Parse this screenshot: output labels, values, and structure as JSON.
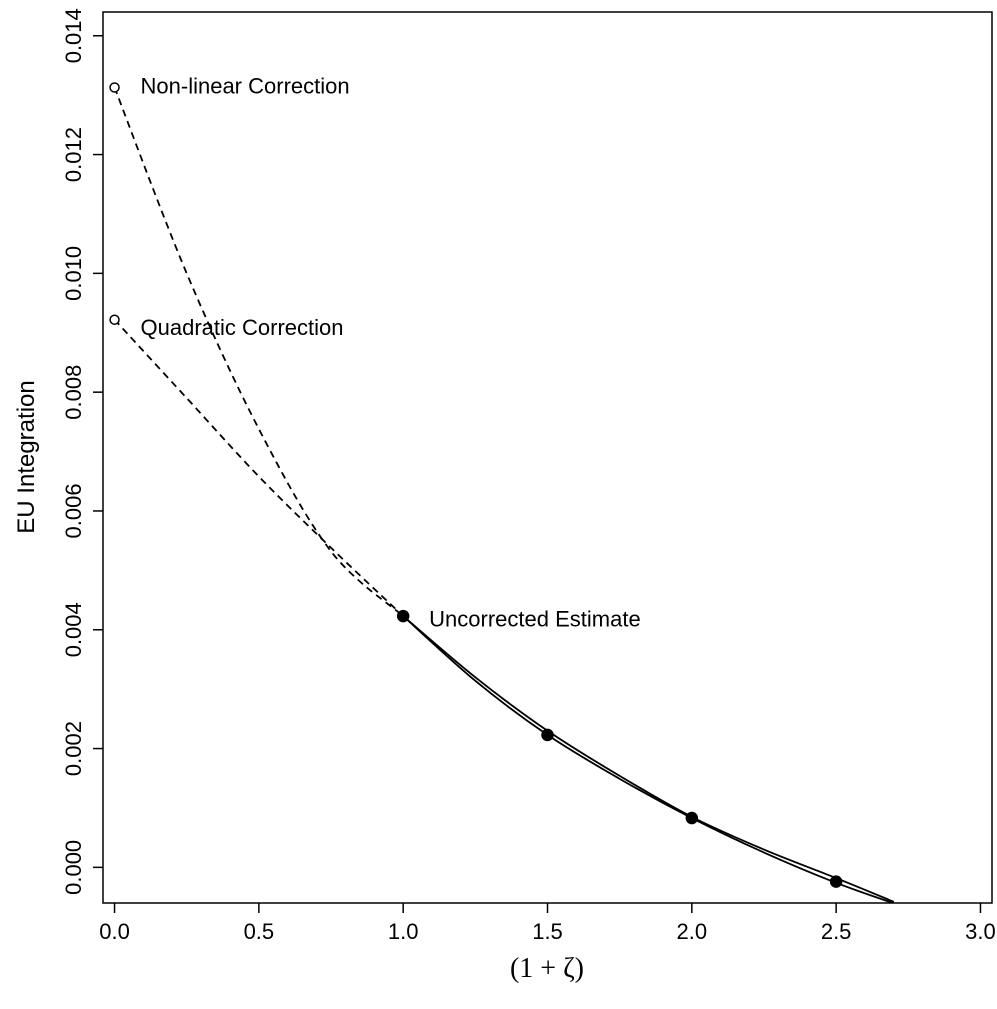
{
  "chart_data": {
    "type": "line",
    "title": "",
    "xlabel": "(1 + ζ)",
    "ylabel": "EU Integration",
    "xlim": [
      -0.04,
      3.04
    ],
    "ylim": [
      -0.0006,
      0.0144
    ],
    "x_ticks": [
      "0.0",
      "0.5",
      "1.0",
      "1.5",
      "2.0",
      "2.5",
      "3.0"
    ],
    "y_ticks": [
      "0.000",
      "0.002",
      "0.004",
      "0.006",
      "0.008",
      "0.010",
      "0.012",
      "0.014"
    ],
    "grid": false,
    "legend": "none",
    "series": [
      {
        "style": "solid",
        "x": [
          1.0,
          1.25,
          1.5,
          1.75,
          2.0,
          2.25,
          2.5,
          2.72
        ],
        "y": [
          0.00423,
          0.00314,
          0.00223,
          0.00149,
          0.00083,
          0.00025,
          -0.00026,
          -0.00064
        ]
      },
      {
        "style": "solid",
        "x": [
          1.0,
          1.25,
          1.5,
          1.75,
          2.0,
          2.25,
          2.5,
          2.7
        ],
        "y": [
          0.00423,
          0.0032,
          0.0023,
          0.00154,
          0.00085,
          0.0003,
          -0.00018,
          -0.00058
        ]
      },
      {
        "style": "dashed",
        "x": [
          0.0,
          0.25,
          0.5,
          0.75,
          1.0
        ],
        "y": [
          0.01313,
          0.01,
          0.00738,
          0.00532,
          0.00423
        ]
      },
      {
        "style": "dashed",
        "x": [
          0.0,
          0.25,
          0.5,
          0.75,
          1.0
        ],
        "y": [
          0.00922,
          0.0079,
          0.00658,
          0.00538,
          0.00423
        ]
      }
    ],
    "points": [
      {
        "x": 1.0,
        "y": 0.00423,
        "marker": "filled"
      },
      {
        "x": 1.5,
        "y": 0.00223,
        "marker": "filled"
      },
      {
        "x": 2.0,
        "y": 0.00083,
        "marker": "filled"
      },
      {
        "x": 2.5,
        "y": -0.00024,
        "marker": "filled"
      },
      {
        "x": 0.0,
        "y": 0.01313,
        "marker": "open"
      },
      {
        "x": 0.0,
        "y": 0.00922,
        "marker": "open"
      }
    ],
    "annotations": [
      {
        "text": "Non-linear Correction",
        "x": 0.09,
        "y": 0.01313
      },
      {
        "text": "Quadratic Correction",
        "x": 0.09,
        "y": 0.00906
      },
      {
        "text": "Uncorrected Estimate",
        "x": 1.09,
        "y": 0.00415
      }
    ]
  }
}
